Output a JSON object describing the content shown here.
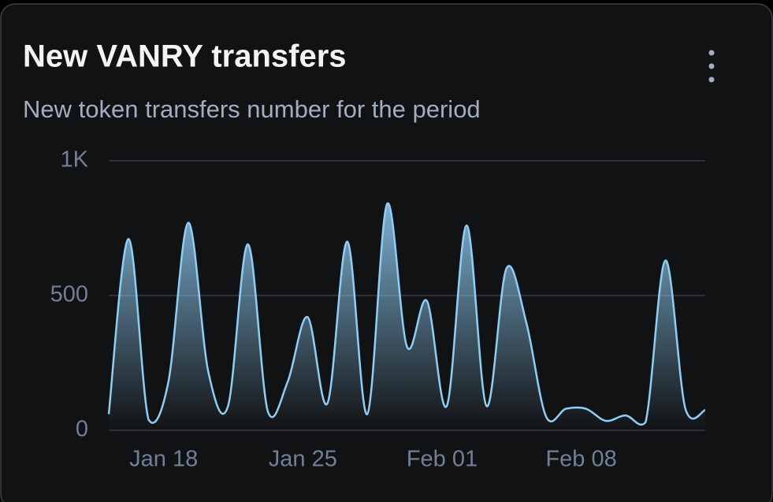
{
  "chart_data": {
    "type": "line",
    "title": "New VANRY transfers",
    "subtitle": "New token transfers number for the period",
    "categories": [
      null,
      null,
      null,
      "Jan 18",
      null,
      null,
      null,
      null,
      null,
      null,
      "Jan 25",
      null,
      null,
      null,
      null,
      null,
      null,
      "Feb 01",
      null,
      null,
      null,
      null,
      null,
      null,
      "Feb 08",
      null,
      null,
      null,
      null,
      null,
      null
    ],
    "series": [
      {
        "color": "#90cdf4",
        "values": [
          60,
          710,
          40,
          180,
          770,
          220,
          90,
          690,
          70,
          180,
          420,
          100,
          700,
          60,
          840,
          310,
          480,
          90,
          760,
          90,
          600,
          400,
          50,
          80,
          80,
          35,
          55,
          30,
          630,
          80,
          75
        ]
      }
    ],
    "ylim": [
      0,
      1000
    ],
    "yticks": [
      0,
      500,
      {
        "value": 1000,
        "label": "1K"
      }
    ],
    "grid": true
  }
}
